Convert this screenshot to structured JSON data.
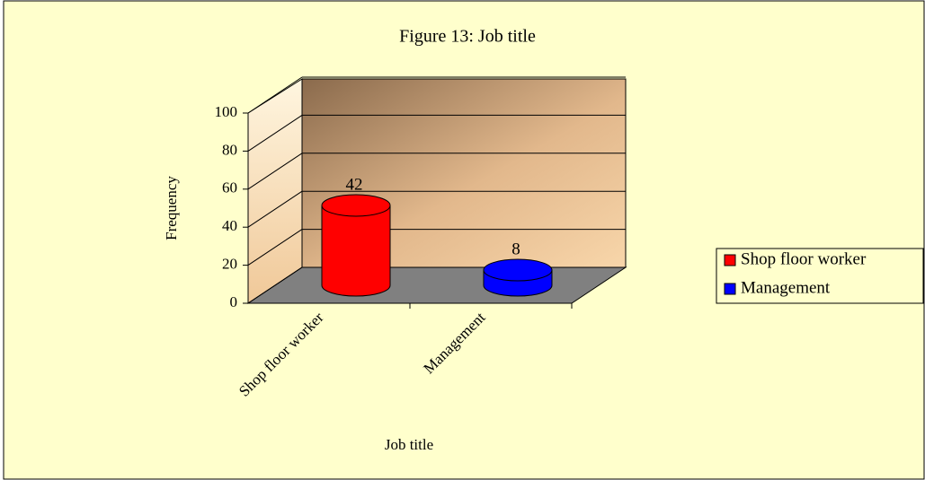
{
  "chart_data": {
    "type": "bar3d",
    "title": "Figure 13: Job title",
    "categories": [
      "Shop floor worker",
      "Management"
    ],
    "values": [
      42,
      8
    ],
    "colors": [
      "#ff0000",
      "#0000ff"
    ],
    "x_label": "Job title",
    "y_label": "Frequency",
    "ylim": [
      0,
      100
    ],
    "yticks": [
      0,
      20,
      40,
      60,
      80,
      100
    ],
    "grid": true,
    "legend": "right"
  }
}
